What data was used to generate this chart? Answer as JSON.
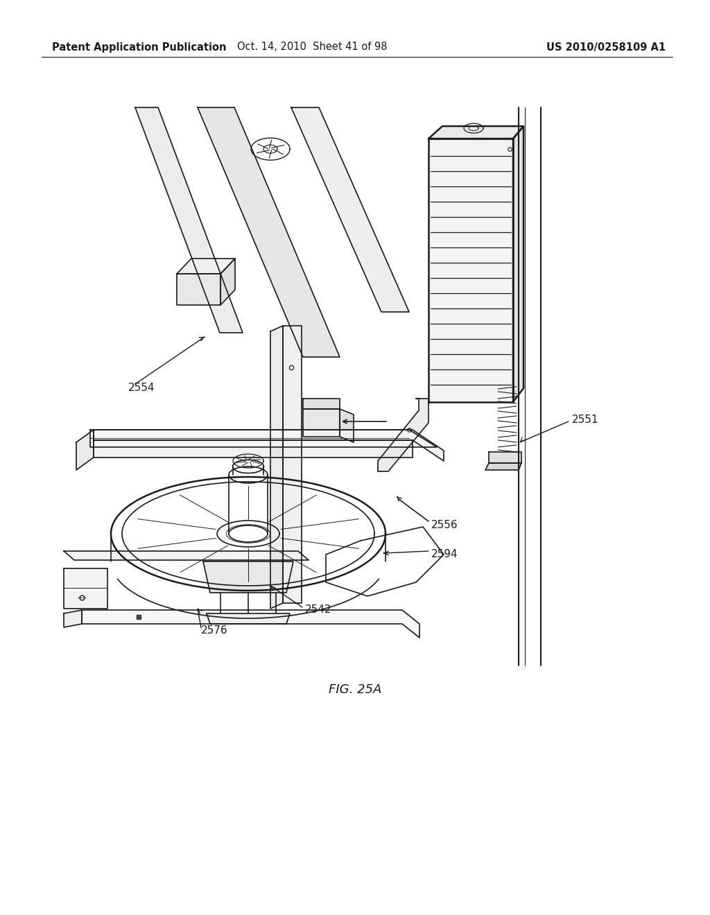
{
  "bg_color": "#ffffff",
  "header_left": "Patent Application Publication",
  "header_center": "Oct. 14, 2010  Sheet 41 of 98",
  "header_right": "US 2010/0258109 A1",
  "figure_label": "FIG. 25A",
  "line_color": "#1a1a1a",
  "header_fontsize": 10.5,
  "label_fontsize": 11,
  "fig_label_fontsize": 13
}
